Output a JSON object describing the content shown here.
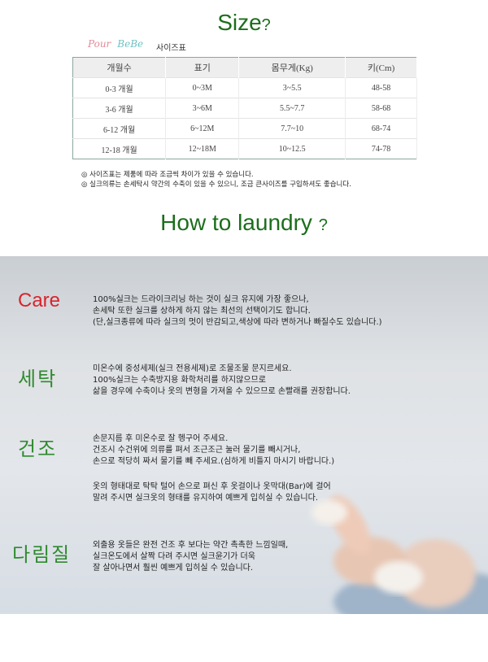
{
  "size_title": {
    "text": "Size",
    "q": "?"
  },
  "brand": {
    "logo_p": "Pour",
    "logo_b": "BeBe",
    "label": "사이즈표"
  },
  "table": {
    "headers": [
      "개월수",
      "표기",
      "몸무게(Kg)",
      "키(Cm)"
    ],
    "rows": [
      [
        "0-3 개월",
        "0~3M",
        "3~5.5",
        "48-58"
      ],
      [
        "3-6 개월",
        "3~6M",
        "5.5~7.7",
        "58-68"
      ],
      [
        "6-12 개월",
        "6~12M",
        "7.7~10",
        "68-74"
      ],
      [
        "12-18 개월",
        "12~18M",
        "10~12.5",
        "74-78"
      ]
    ]
  },
  "notes": [
    "◎ 사이즈표는 제품에 따라 조금씩 차이가 있을 수 있습니다.",
    "◎ 실크의류는 손세탁시 약간의 수축이 있을 수 있으니,  조금 큰사이즈를 구입하셔도 좋습니다."
  ],
  "laundry_title": {
    "text": "How to laundry ",
    "q": "?"
  },
  "sections": [
    {
      "heading": "Care",
      "color": "#d8242c",
      "text": "100%실크는 드라이크리닝 하는 것이 실크 유지에 가장 좋으나,\n손세탁 또한 실크를 상하게 하지 않는 최선의 선택이기도 합니다.\n(단,실크종류에 따라 실크의 멋이 반감되고,색상에 따라 변하거나 빠질수도 있습니다.)"
    },
    {
      "heading": "세탁",
      "color": "#2f8a2f",
      "text": "미온수에 중성세제(실크 전용세제)로 조물조물 문지르세요.\n100%실크는 수축방지용 화학처리를 하지않으므로\n삶을 경우에 수축이나 옷의 변형을 가져올 수 있으므로 손빨래를 권장합니다."
    },
    {
      "heading": "건조",
      "color": "#2f8a2f",
      "text": "손문지름 후 미온수로 잘 헹구어 주세요.\n건조시 수건위에 의류를 펴서 조근조근 눌러 물기를 빼시거나,\n손으로 적당히 짜서 물기를 빼 주세요.(심하게 비틀지 마시기 바랍니다.)",
      "text2": "옷의 형태대로 탁탁 털어 손으로 펴신 후 옷걸이나 옷막대(Bar)에 걸어\n말려 주시면 실크옷의 형태를 유지하여 예쁘게 입히실 수 있습니다."
    },
    {
      "heading": "다림질",
      "color": "#2f8a2f",
      "text": "외출용 옷들은 완전 건조 후 보다는  약간 촉촉한 느낌일때,\n실크온도에서 살짝 다려 주시면 실크윤기가 더욱\n잘 살아나면서 훨씬 예쁘게 입히실 수 있습니다."
    }
  ]
}
